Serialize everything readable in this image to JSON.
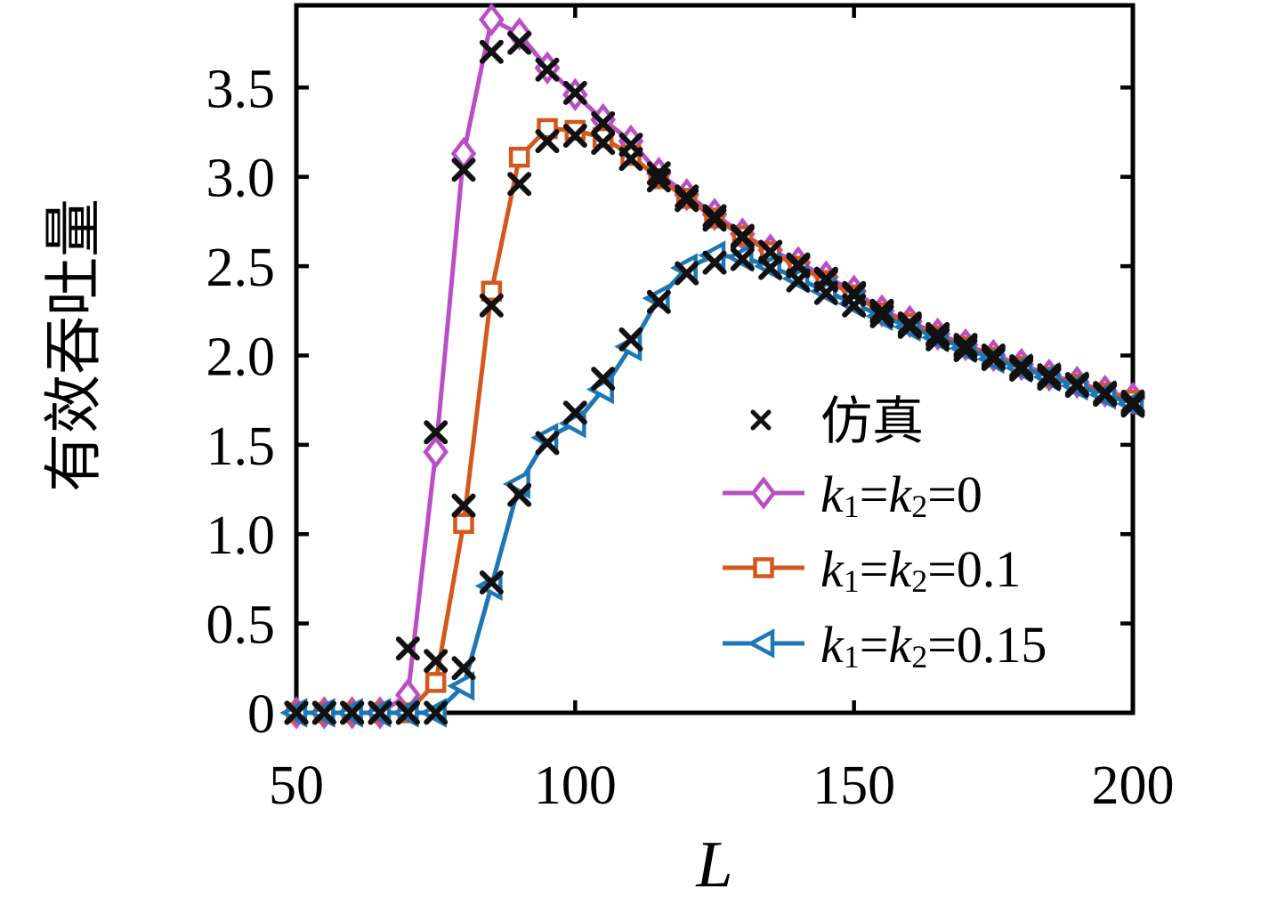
{
  "chart_data": {
    "type": "line",
    "title": "",
    "xlabel": "L",
    "ylabel": "有效吞吐量",
    "xlim": [
      50,
      200
    ],
    "ylim": [
      0,
      3.96
    ],
    "x_ticks": [
      50,
      100,
      150,
      200
    ],
    "x_tick_labels": [
      "50",
      "100",
      "150",
      "200"
    ],
    "y_ticks": [
      0,
      0.5,
      1,
      1.5,
      2,
      2.5,
      3,
      3.5
    ],
    "y_tick_labels": [
      "0",
      "0.5",
      "1.0",
      "1.5",
      "2.0",
      "2.5",
      "3.0",
      "3.5"
    ],
    "grid": false,
    "legend_position": "inside-right-middle",
    "background": "#ffffff",
    "axis_color": "#000000",
    "x": [
      50,
      55,
      60,
      65,
      70,
      75,
      80,
      85,
      90,
      95,
      100,
      105,
      110,
      115,
      120,
      125,
      130,
      135,
      140,
      145,
      150,
      155,
      160,
      165,
      170,
      175,
      180,
      185,
      190,
      195,
      200
    ],
    "series": [
      {
        "name": "k₁=k₂=0",
        "marker": "diamond",
        "color": "#bb4ec6",
        "line": true,
        "values": [
          0,
          0,
          0,
          0,
          0.1,
          1.46,
          3.13,
          3.88,
          3.8,
          3.61,
          3.46,
          3.32,
          3.2,
          3.02,
          2.9,
          2.79,
          2.68,
          2.59,
          2.52,
          2.44,
          2.36,
          2.25,
          2.19,
          2.12,
          2.06,
          2.0,
          1.95,
          1.89,
          1.85,
          1.8,
          1.76
        ]
      },
      {
        "name": "k₁=k₂=0.1",
        "marker": "square",
        "color": "#d4581c",
        "line": true,
        "values": [
          0,
          0,
          0,
          0,
          0,
          0.17,
          1.06,
          2.36,
          3.11,
          3.27,
          3.26,
          3.22,
          3.12,
          2.99,
          2.88,
          2.77,
          2.67,
          2.58,
          2.5,
          2.42,
          2.34,
          2.24,
          2.18,
          2.11,
          2.05,
          1.99,
          1.94,
          1.88,
          1.84,
          1.79,
          1.75
        ]
      },
      {
        "name": "k₁=k₂=0.15",
        "marker": "triangle-left",
        "color": "#1d76b6",
        "line": true,
        "values": [
          0,
          0,
          0,
          0,
          0,
          0,
          0.15,
          0.71,
          1.28,
          1.54,
          1.62,
          1.81,
          2.05,
          2.32,
          2.49,
          2.56,
          2.55,
          2.5,
          2.43,
          2.36,
          2.29,
          2.22,
          2.16,
          2.1,
          2.04,
          1.98,
          1.93,
          1.88,
          1.83,
          1.78,
          1.73
        ]
      }
    ],
    "simulation": {
      "name": "仿真",
      "marker": "cross",
      "color": "#111111",
      "sets": [
        [
          0,
          0,
          0,
          0,
          0.36,
          1.57,
          3.04,
          3.7,
          3.75,
          3.6,
          3.47,
          3.3,
          3.18,
          3.02,
          2.89,
          2.78,
          2.67,
          2.58,
          2.51,
          2.43,
          2.35,
          2.25,
          2.18,
          2.12,
          2.06,
          2.0,
          1.94,
          1.89,
          1.84,
          1.79,
          1.73
        ],
        [
          0,
          0,
          0,
          0,
          0,
          0.29,
          1.16,
          2.28,
          2.96,
          3.2,
          3.23,
          3.19,
          3.1,
          2.98,
          2.87,
          2.76,
          2.66,
          2.58,
          2.5,
          2.42,
          2.34,
          2.24,
          2.17,
          2.11,
          2.05,
          1.99,
          1.93,
          1.88,
          1.84,
          1.79,
          1.74
        ],
        [
          0,
          0,
          0,
          0,
          0,
          0,
          0.25,
          0.73,
          1.22,
          1.51,
          1.68,
          1.87,
          2.09,
          2.3,
          2.46,
          2.52,
          2.54,
          2.49,
          2.42,
          2.35,
          2.28,
          2.22,
          2.16,
          2.09,
          2.03,
          1.98,
          1.92,
          1.87,
          1.83,
          1.78,
          1.72
        ]
      ]
    },
    "legend": [
      {
        "label": "仿真",
        "marker": "cross",
        "color": "#111111",
        "line": false
      },
      {
        "label": "k₁=k₂=0",
        "marker": "diamond",
        "color": "#bb4ec6",
        "line": true
      },
      {
        "label": "k₁=k₂=0.1",
        "marker": "square",
        "color": "#d4581c",
        "line": true
      },
      {
        "label": "k₁=k₂=0.15",
        "marker": "triangle-left",
        "color": "#1d76b6",
        "line": true
      }
    ]
  }
}
